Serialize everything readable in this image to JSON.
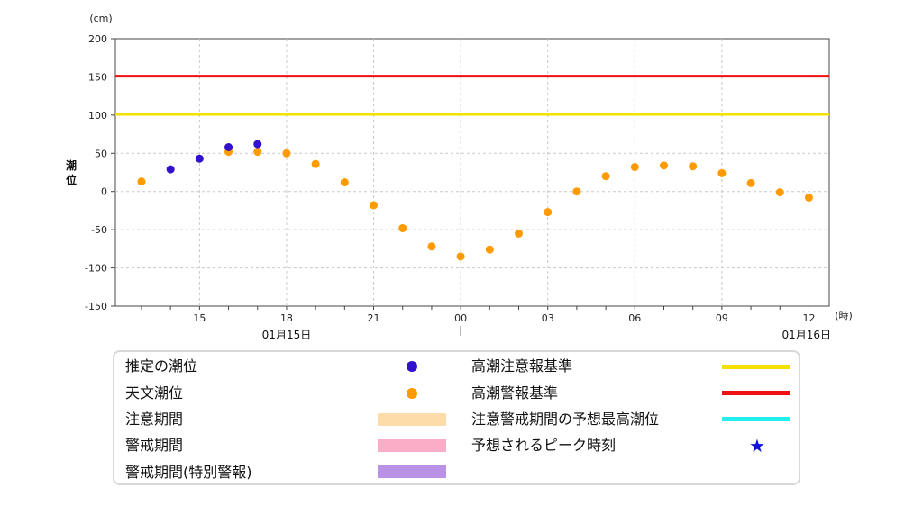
{
  "chart_data": {
    "type": "scatter",
    "ylabel": "潮位",
    "yunit": "(cm)",
    "xunit": "(時)",
    "ylim": [
      -150,
      200
    ],
    "yticks": [
      "200",
      "150",
      "100",
      "50",
      "0",
      "-50",
      "-100",
      "-150"
    ],
    "xticks": [
      "15",
      "18",
      "21",
      "00",
      "03",
      "06",
      "09",
      "12"
    ],
    "date_labels": [
      "01月15日",
      "01月16日"
    ],
    "grid": true,
    "thresholds": [
      {
        "name": "高潮警報基準",
        "value": 151,
        "color": "#ee1111"
      },
      {
        "name": "高潮注意報基準",
        "value": 101,
        "color": "#f5e000"
      }
    ],
    "series": [
      {
        "name": "推定の潮位",
        "color": "#3311cc",
        "points": [
          {
            "x": "01/15 14:00",
            "y": 29
          },
          {
            "x": "01/15 15:00",
            "y": 43
          },
          {
            "x": "01/15 16:00",
            "y": 58
          },
          {
            "x": "01/15 17:00",
            "y": 62
          }
        ]
      },
      {
        "name": "天文潮位",
        "color": "#ff9a00",
        "points": [
          {
            "x": "01/15 13:00",
            "y": 13
          },
          {
            "x": "01/15 16:00",
            "y": 52
          },
          {
            "x": "01/15 17:00",
            "y": 52
          },
          {
            "x": "01/15 18:00",
            "y": 50
          },
          {
            "x": "01/15 19:00",
            "y": 36
          },
          {
            "x": "01/15 20:00",
            "y": 12
          },
          {
            "x": "01/15 21:00",
            "y": -18
          },
          {
            "x": "01/15 22:00",
            "y": -48
          },
          {
            "x": "01/15 23:00",
            "y": -72
          },
          {
            "x": "01/16 00:00",
            "y": -85
          },
          {
            "x": "01/16 01:00",
            "y": -76
          },
          {
            "x": "01/16 02:00",
            "y": -55
          },
          {
            "x": "01/16 03:00",
            "y": -27
          },
          {
            "x": "01/16 04:00",
            "y": 0
          },
          {
            "x": "01/16 05:00",
            "y": 20
          },
          {
            "x": "01/16 06:00",
            "y": 32
          },
          {
            "x": "01/16 07:00",
            "y": 34
          },
          {
            "x": "01/16 08:00",
            "y": 33
          },
          {
            "x": "01/16 09:00",
            "y": 24
          },
          {
            "x": "01/16 10:00",
            "y": 11
          },
          {
            "x": "01/16 11:00",
            "y": -1
          },
          {
            "x": "01/16 12:00",
            "y": -8
          }
        ]
      }
    ]
  },
  "legend": {
    "items": [
      {
        "label": "推定の潮位",
        "kind": "dot",
        "color": "#3311cc"
      },
      {
        "label": "天文潮位",
        "kind": "dot",
        "color": "#ff9a00"
      },
      {
        "label": "注意期間",
        "kind": "bar",
        "color": "#fddcaa"
      },
      {
        "label": "警戒期間",
        "kind": "bar",
        "color": "#fbadc8"
      },
      {
        "label": "警戒期間(特別警報)",
        "kind": "bar",
        "color": "#b992e6"
      },
      {
        "label": "高潮注意報基準",
        "kind": "line",
        "color": "#f5e000"
      },
      {
        "label": "高潮警報基準",
        "kind": "line",
        "color": "#ee1111"
      },
      {
        "label": "注意警戒期間の予想最高潮位",
        "kind": "line",
        "color": "#22eeee"
      },
      {
        "label": "予想されるピーク時刻",
        "kind": "star",
        "color": "#1111dd",
        "symbol": "★"
      }
    ]
  }
}
